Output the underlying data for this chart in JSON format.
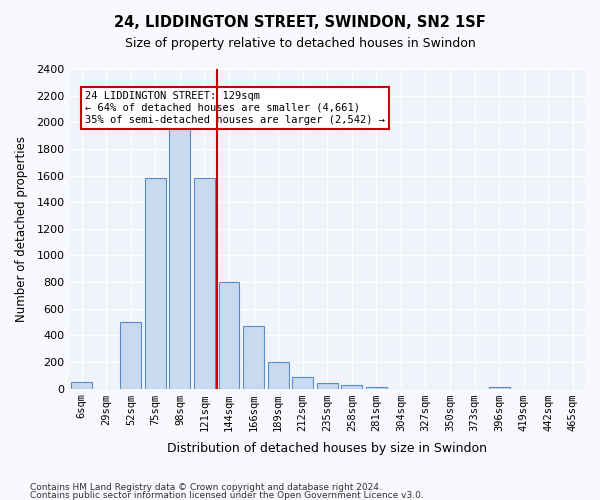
{
  "title": "24, LIDDINGTON STREET, SWINDON, SN2 1SF",
  "subtitle": "Size of property relative to detached houses in Swindon",
  "xlabel": "Distribution of detached houses by size in Swindon",
  "ylabel": "Number of detached properties",
  "bar_labels": [
    "6sqm",
    "29sqm",
    "52sqm",
    "75sqm",
    "98sqm",
    "121sqm",
    "144sqm",
    "166sqm",
    "189sqm",
    "212sqm",
    "235sqm",
    "258sqm",
    "281sqm",
    "304sqm",
    "327sqm",
    "350sqm",
    "373sqm",
    "396sqm",
    "419sqm",
    "442sqm",
    "465sqm"
  ],
  "bar_values": [
    50,
    0,
    500,
    1580,
    1950,
    1580,
    800,
    470,
    200,
    90,
    40,
    25,
    15,
    0,
    0,
    0,
    0,
    15,
    0,
    0,
    0
  ],
  "bar_color": "#c9d9f0",
  "bar_edge_color": "#5b8dc8",
  "vline_x_index": 5.0,
  "vline_color": "#cc0000",
  "annotation_text": "24 LIDDINGTON STREET: 129sqm\n← 64% of detached houses are smaller (4,661)\n35% of semi-detached houses are larger (2,542) →",
  "annotation_box_color": "#ffffff",
  "annotation_box_edge": "#cc0000",
  "ylim": [
    0,
    2400
  ],
  "yticks": [
    0,
    200,
    400,
    600,
    800,
    1000,
    1200,
    1400,
    1600,
    1800,
    2000,
    2200,
    2400
  ],
  "bg_color": "#f0f4fa",
  "grid_color": "#ffffff",
  "footer1": "Contains HM Land Registry data © Crown copyright and database right 2024.",
  "footer2": "Contains public sector information licensed under the Open Government Licence v3.0."
}
